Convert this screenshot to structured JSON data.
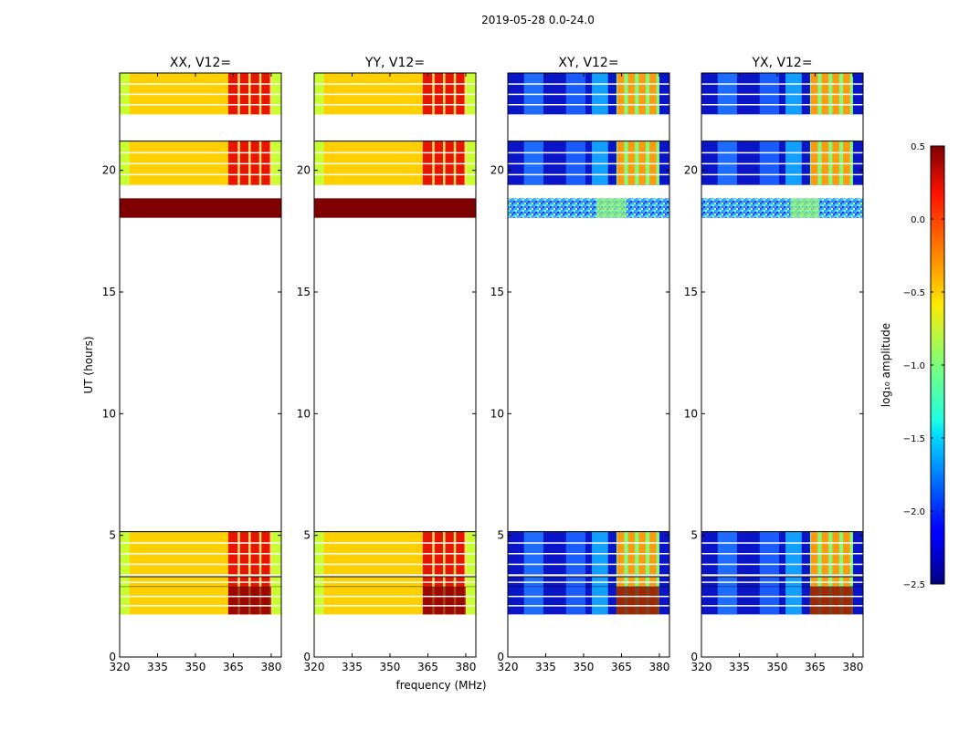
{
  "figure": {
    "title": "2019-05-28 0.0-24.0",
    "xlabel": "frequency (MHz)",
    "ylabel": "UT (hours)",
    "colorbar_label": "log₁₀ amplitude"
  },
  "chart_data": {
    "type": "heatmap",
    "xlim": [
      320,
      384
    ],
    "ylim": [
      0,
      24
    ],
    "xticks": [
      320,
      335,
      350,
      365,
      380
    ],
    "yticks": [
      0,
      5,
      10,
      15,
      20
    ],
    "panels": [
      {
        "id": "xx",
        "title": "XX, V12=",
        "kind": "auto"
      },
      {
        "id": "yy",
        "title": "YY, V12=",
        "kind": "auto"
      },
      {
        "id": "xy",
        "title": "XY, V12=",
        "kind": "cross"
      },
      {
        "id": "yx",
        "title": "YX, V12=",
        "kind": "cross"
      }
    ],
    "data_blocks_ut": [
      [
        1.75,
        2.9
      ],
      [
        2.9,
        3.3
      ],
      [
        3.4,
        5.15
      ],
      [
        18.05,
        18.85
      ],
      [
        19.4,
        21.2
      ],
      [
        22.3,
        24.0
      ]
    ],
    "saturated_block_ut": [
      18.05,
      18.85
    ],
    "rfi_band_mhz": [
      363,
      380
    ],
    "colorbar": {
      "min": -2.5,
      "max": 0.5,
      "ticks": [
        -2.5,
        -2.0,
        -1.5,
        -1.0,
        -0.5,
        0.0,
        0.5
      ],
      "tick_labels": [
        "−2.5",
        "−2.0",
        "−1.5",
        "−1.0",
        "−0.5",
        "0.0",
        "0.5"
      ],
      "colormap": "jet"
    }
  }
}
